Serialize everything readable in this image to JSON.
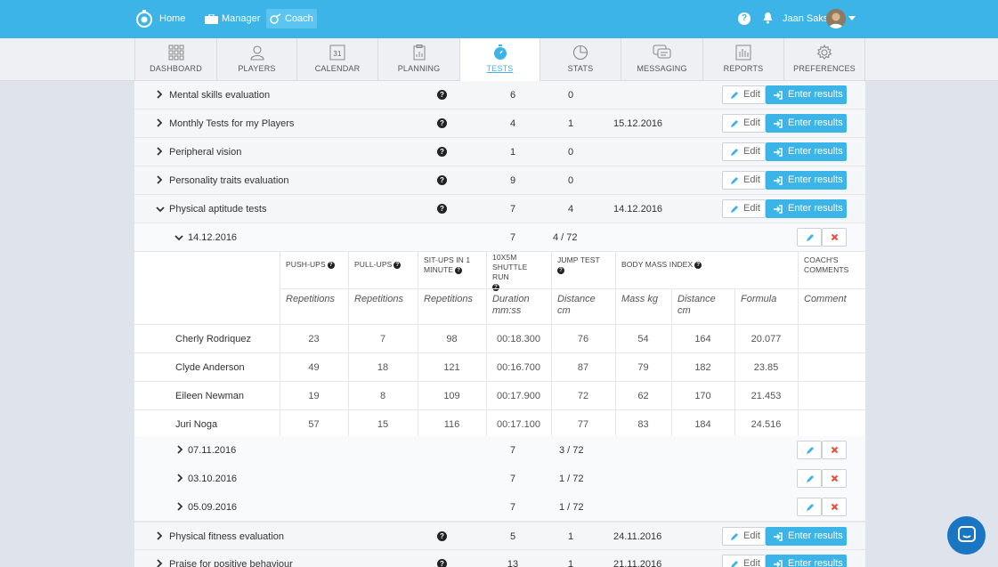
{
  "topbar": {
    "home": "Home",
    "manager": "Manager",
    "coach": "Coach",
    "user_name": "Jaan Saks",
    "help": "?"
  },
  "tabs": [
    {
      "label": "DASHBOARD"
    },
    {
      "label": "PLAYERS"
    },
    {
      "label": "CALENDAR",
      "day": "31"
    },
    {
      "label": "PLANNING"
    },
    {
      "label": "TESTS"
    },
    {
      "label": "STATS"
    },
    {
      "label": "MESSAGING"
    },
    {
      "label": "REPORTS"
    },
    {
      "label": "PREFERENCES"
    }
  ],
  "buttons": {
    "edit": "Edit",
    "enter": "Enter results"
  },
  "tests": [
    {
      "name": "Mental skills evaluation",
      "exercises": "6",
      "results": "0",
      "date": ""
    },
    {
      "name": "Monthly Tests for my Players",
      "exercises": "4",
      "results": "1",
      "date": "15.12.2016"
    },
    {
      "name": "Peripheral vision",
      "exercises": "1",
      "results": "0",
      "date": ""
    },
    {
      "name": "Personality traits evaluation",
      "exercises": "9",
      "results": "0",
      "date": ""
    },
    {
      "name": "Physical aptitude tests",
      "exercises": "7",
      "results": "4",
      "date": "14.12.2016"
    }
  ],
  "open_session": {
    "date": "14.12.2016",
    "exercises": "7",
    "results": "4 / 72"
  },
  "columns": {
    "pushups": "PUSH-UPS",
    "pullups": "PULL-UPS",
    "situps": "SIT-UPS IN 1 MINUTE",
    "shuttle": "10X5M SHUTTLE RUN",
    "jump": "JUMP TEST",
    "bmi": "BODY MASS INDEX",
    "comments": "COACH'S COMMENTS"
  },
  "units": {
    "pushups": "Repetitions",
    "pullups": "Repetitions",
    "situps": "Repetitions",
    "shuttle": "Duration mm:ss",
    "jump": "Distance cm",
    "mass": "Mass kg",
    "distance": "Distance cm",
    "formula": "Formula",
    "comment": "Comment"
  },
  "players": [
    {
      "name": "Cherly Rodriquez",
      "v": [
        "23",
        "7",
        "98",
        "00:18.300",
        "76",
        "54",
        "164",
        "20.077"
      ]
    },
    {
      "name": "Clyde Anderson",
      "v": [
        "49",
        "18",
        "121",
        "00:16.700",
        "87",
        "79",
        "182",
        "23.85"
      ]
    },
    {
      "name": "Eileen Newman",
      "v": [
        "19",
        "8",
        "109",
        "00:17.900",
        "72",
        "62",
        "170",
        "21.453"
      ]
    },
    {
      "name": "Juri Noga",
      "v": [
        "57",
        "15",
        "116",
        "00:17.100",
        "77",
        "83",
        "184",
        "24.516"
      ]
    }
  ],
  "sessions": [
    {
      "date": "07.11.2016",
      "exercises": "7",
      "results": "3 / 72"
    },
    {
      "date": "03.10.2016",
      "exercises": "7",
      "results": "1 / 72"
    },
    {
      "date": "05.09.2016",
      "exercises": "7",
      "results": "1 / 72"
    }
  ],
  "tests_after": [
    {
      "name": "Physical fitness evaluation",
      "exercises": "5",
      "results": "1",
      "date": "24.11.2016"
    },
    {
      "name": "Praise for positive behaviour",
      "exercises": "13",
      "results": "1",
      "date": "21.11.2016"
    }
  ],
  "colors": {
    "accent": "#3db4e8",
    "danger": "#e74c3c",
    "chat": "#1976c2"
  }
}
